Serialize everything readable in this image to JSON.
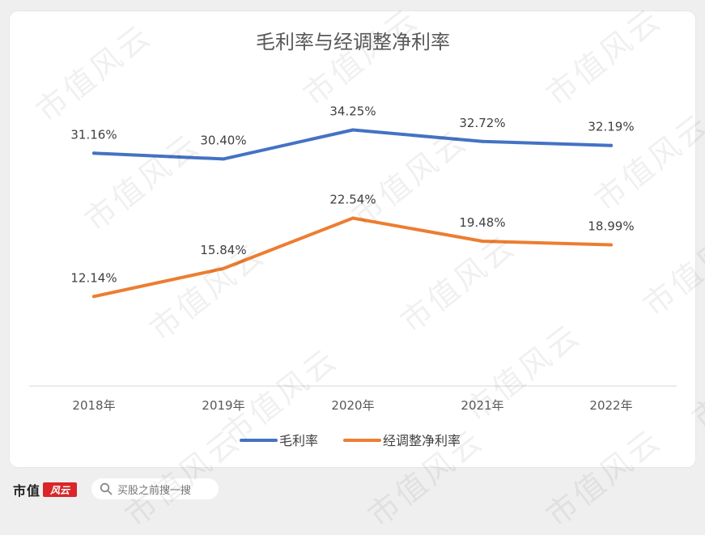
{
  "chart_data": {
    "type": "line",
    "title": "毛利率与经调整净利率",
    "categories": [
      "2018年",
      "2019年",
      "2020年",
      "2021年",
      "2022年"
    ],
    "series": [
      {
        "name": "毛利率",
        "color": "#4472c4",
        "values": [
          31.16,
          30.4,
          34.25,
          32.72,
          32.19
        ],
        "labels": [
          "31.16%",
          "30.40%",
          "34.25%",
          "32.72%",
          "32.19%"
        ]
      },
      {
        "name": "经调整净利率",
        "color": "#ed7d31",
        "values": [
          12.14,
          15.84,
          22.54,
          19.48,
          18.99
        ],
        "labels": [
          "12.14%",
          "15.84%",
          "22.54%",
          "19.48%",
          "18.99%"
        ]
      }
    ],
    "ylim": [
      0,
      40
    ],
    "grid": false,
    "legend_position": "bottom"
  },
  "footer": {
    "brand": "市值",
    "brand_badge": "风云",
    "search_placeholder": "买股之前搜一搜"
  },
  "watermark": "市值风云"
}
